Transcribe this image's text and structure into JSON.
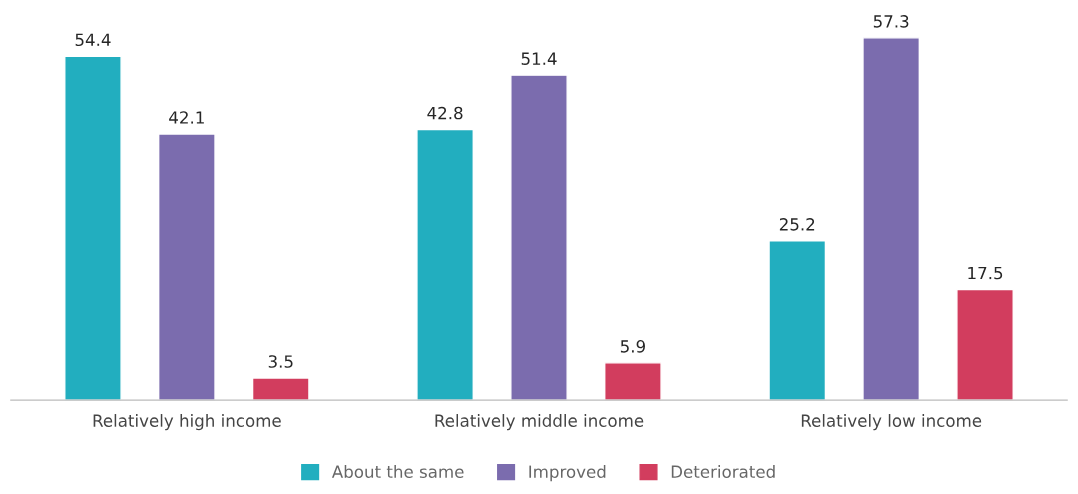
{
  "chart_data": {
    "type": "bar",
    "categories": [
      "Relatively high income",
      "Relatively middle income",
      "Relatively low income"
    ],
    "series": [
      {
        "name": "About the same",
        "color": "#22aebf",
        "values": [
          54.4,
          42.8,
          25.2
        ]
      },
      {
        "name": "Improved",
        "color": "#7b6cae",
        "values": [
          42.1,
          51.4,
          57.3
        ]
      },
      {
        "name": "Deteriorated",
        "color": "#d23d5e",
        "values": [
          3.5,
          5.9,
          17.5
        ]
      }
    ],
    "data_labels": true,
    "legend": "bottom",
    "grid": false,
    "tick_labels": "x"
  }
}
